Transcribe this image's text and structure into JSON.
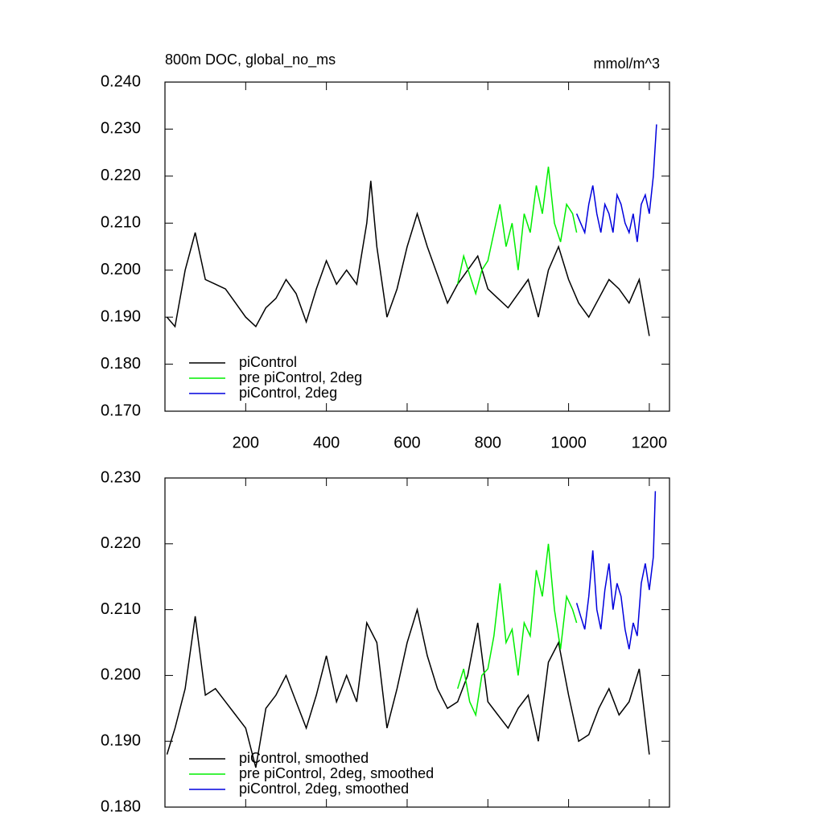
{
  "chart_data": [
    {
      "type": "line",
      "title": "800m DOC, global_no_ms",
      "units": "mmol/m^3",
      "xlim": [
        0,
        1250
      ],
      "xticks": [
        200,
        400,
        600,
        800,
        1000,
        1200
      ],
      "show_xtick_labels": true,
      "ylim": [
        0.17,
        0.24
      ],
      "yticks": [
        {
          "value": 0.17,
          "label": "0.170"
        },
        {
          "value": 0.18,
          "label": "0.180"
        },
        {
          "value": 0.19,
          "label": "0.190"
        },
        {
          "value": 0.2,
          "label": "0.200"
        },
        {
          "value": 0.21,
          "label": "0.210"
        },
        {
          "value": 0.22,
          "label": "0.220"
        },
        {
          "value": 0.23,
          "label": "0.230"
        },
        {
          "value": 0.24,
          "label": "0.240"
        }
      ],
      "legend": "lower left",
      "series": [
        {
          "name": "piControl",
          "color": "#000000",
          "x": [
            5,
            25,
            50,
            75,
            100,
            125,
            150,
            175,
            200,
            225,
            250,
            275,
            300,
            325,
            350,
            375,
            400,
            425,
            450,
            475,
            500,
            510,
            525,
            550,
            575,
            600,
            625,
            650,
            675,
            700,
            725,
            750,
            775,
            800,
            825,
            850,
            875,
            900,
            925,
            950,
            975,
            1000,
            1025,
            1050,
            1075,
            1100,
            1125,
            1150,
            1175,
            1200
          ],
          "values": [
            0.19,
            0.188,
            0.2,
            0.208,
            0.198,
            0.197,
            0.196,
            0.193,
            0.19,
            0.188,
            0.192,
            0.194,
            0.198,
            0.195,
            0.189,
            0.196,
            0.202,
            0.197,
            0.2,
            0.197,
            0.21,
            0.219,
            0.205,
            0.19,
            0.196,
            0.205,
            0.212,
            0.205,
            0.199,
            0.193,
            0.197,
            0.2,
            0.203,
            0.196,
            0.194,
            0.192,
            0.195,
            0.198,
            0.19,
            0.2,
            0.205,
            0.198,
            0.193,
            0.19,
            0.194,
            0.198,
            0.196,
            0.193,
            0.198,
            0.186
          ]
        },
        {
          "name": "pre piControl, 2deg",
          "color": "#00ee00",
          "x": [
            725,
            740,
            755,
            770,
            785,
            800,
            815,
            830,
            845,
            860,
            875,
            890,
            905,
            920,
            935,
            950,
            965,
            980,
            995,
            1010,
            1020
          ],
          "values": [
            0.197,
            0.203,
            0.199,
            0.195,
            0.2,
            0.202,
            0.208,
            0.214,
            0.205,
            0.21,
            0.2,
            0.212,
            0.208,
            0.218,
            0.212,
            0.222,
            0.21,
            0.206,
            0.214,
            0.212,
            0.208
          ]
        },
        {
          "name": "piControl, 2deg",
          "color": "#0000dd",
          "x": [
            1020,
            1030,
            1040,
            1050,
            1060,
            1070,
            1080,
            1090,
            1100,
            1110,
            1120,
            1130,
            1140,
            1150,
            1160,
            1170,
            1180,
            1190,
            1200,
            1210,
            1218
          ],
          "values": [
            0.212,
            0.21,
            0.208,
            0.214,
            0.218,
            0.212,
            0.208,
            0.214,
            0.212,
            0.208,
            0.216,
            0.214,
            0.21,
            0.208,
            0.212,
            0.206,
            0.214,
            0.216,
            0.212,
            0.22,
            0.231
          ]
        }
      ]
    },
    {
      "type": "line",
      "xlim": [
        0,
        1250
      ],
      "xticks": [
        200,
        400,
        600,
        800,
        1000,
        1200
      ],
      "show_xtick_labels": false,
      "ylim": [
        0.18,
        0.23
      ],
      "yticks": [
        {
          "value": 0.18,
          "label": "0.180"
        },
        {
          "value": 0.19,
          "label": "0.190"
        },
        {
          "value": 0.2,
          "label": "0.200"
        },
        {
          "value": 0.21,
          "label": "0.210"
        },
        {
          "value": 0.22,
          "label": "0.220"
        },
        {
          "value": 0.23,
          "label": "0.230"
        }
      ],
      "legend": "lower left",
      "series": [
        {
          "name": "piControl, smoothed",
          "color": "#000000",
          "x": [
            5,
            25,
            50,
            75,
            100,
            125,
            150,
            175,
            200,
            225,
            250,
            275,
            300,
            325,
            350,
            375,
            400,
            425,
            450,
            475,
            500,
            525,
            550,
            575,
            600,
            625,
            650,
            675,
            700,
            725,
            750,
            775,
            800,
            825,
            850,
            875,
            900,
            925,
            950,
            975,
            1000,
            1025,
            1050,
            1075,
            1100,
            1125,
            1150,
            1175,
            1200
          ],
          "values": [
            0.188,
            0.192,
            0.198,
            0.209,
            0.197,
            0.198,
            0.196,
            0.194,
            0.192,
            0.186,
            0.195,
            0.197,
            0.2,
            0.196,
            0.192,
            0.197,
            0.203,
            0.196,
            0.2,
            0.196,
            0.208,
            0.205,
            0.192,
            0.198,
            0.205,
            0.21,
            0.203,
            0.198,
            0.195,
            0.196,
            0.2,
            0.208,
            0.196,
            0.194,
            0.192,
            0.195,
            0.197,
            0.19,
            0.202,
            0.205,
            0.197,
            0.19,
            0.191,
            0.195,
            0.198,
            0.194,
            0.196,
            0.201,
            0.188
          ]
        },
        {
          "name": "pre piControl, 2deg, smoothed",
          "color": "#00ee00",
          "x": [
            725,
            740,
            755,
            770,
            785,
            800,
            815,
            830,
            845,
            860,
            875,
            890,
            905,
            920,
            935,
            950,
            965,
            980,
            995,
            1010,
            1020
          ],
          "values": [
            0.198,
            0.201,
            0.196,
            0.194,
            0.2,
            0.201,
            0.206,
            0.214,
            0.205,
            0.207,
            0.2,
            0.208,
            0.206,
            0.216,
            0.212,
            0.22,
            0.21,
            0.204,
            0.212,
            0.21,
            0.208
          ]
        },
        {
          "name": "piControl, 2deg, smoothed",
          "color": "#0000dd",
          "x": [
            1020,
            1030,
            1040,
            1050,
            1060,
            1070,
            1080,
            1090,
            1100,
            1110,
            1120,
            1130,
            1140,
            1150,
            1160,
            1170,
            1180,
            1190,
            1200,
            1210,
            1215
          ],
          "values": [
            0.211,
            0.209,
            0.207,
            0.212,
            0.219,
            0.21,
            0.207,
            0.213,
            0.217,
            0.21,
            0.214,
            0.212,
            0.207,
            0.204,
            0.208,
            0.206,
            0.214,
            0.217,
            0.213,
            0.218,
            0.228
          ]
        }
      ]
    }
  ]
}
